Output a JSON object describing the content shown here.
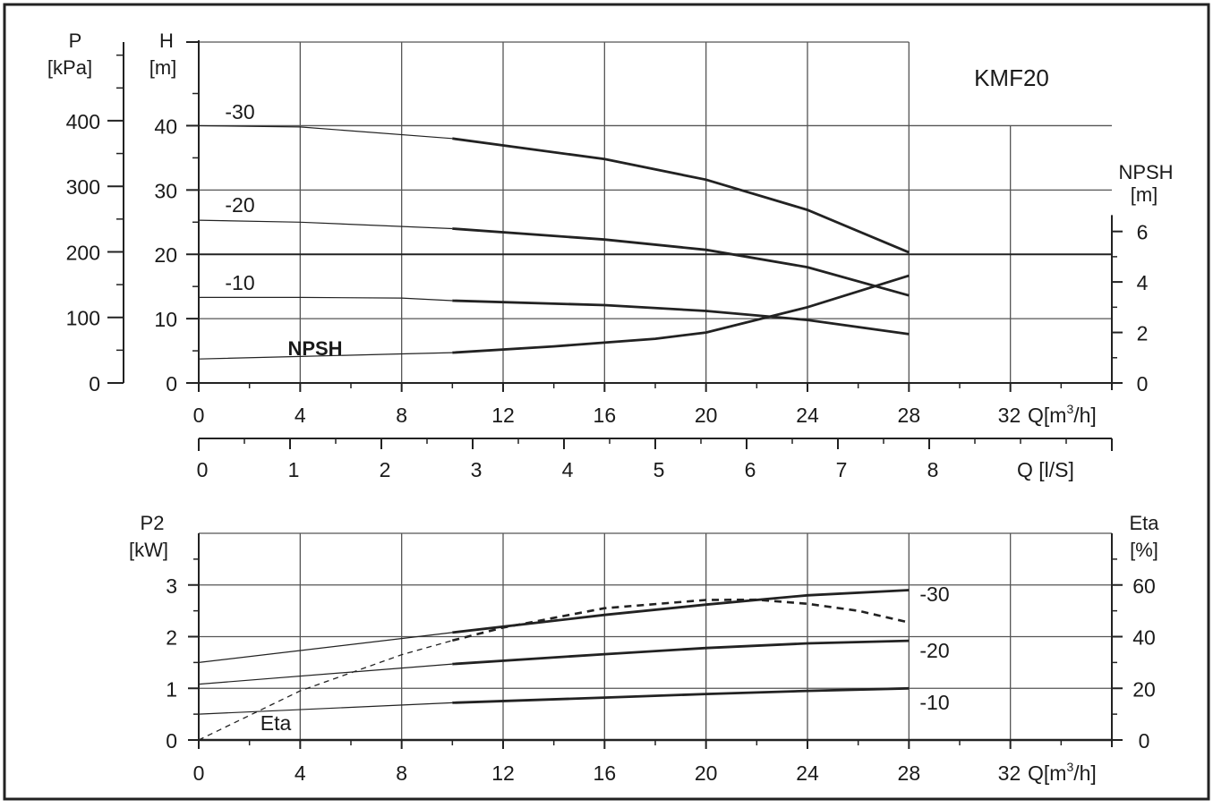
{
  "chart_data": [
    {
      "type": "line",
      "model": "KMF20",
      "x": {
        "unit": "Q[m³/h]",
        "range": [
          0,
          36
        ],
        "ticks": [
          0,
          4,
          8,
          12,
          16,
          20,
          24,
          28,
          32
        ]
      },
      "x_secondary": {
        "unit": "Q [l/S]",
        "range": [
          0,
          10
        ],
        "ticks": [
          0,
          1,
          2,
          3,
          4,
          5,
          6,
          7,
          8
        ]
      },
      "y_left_pressure": {
        "label_line1": "P",
        "label_line2": "[kPa]",
        "range": [
          0,
          520
        ],
        "ticks": [
          0,
          100,
          200,
          300,
          400
        ]
      },
      "y_left_head": {
        "label_line1": "H",
        "label_line2": "[m]",
        "range": [
          0,
          53
        ],
        "ticks": [
          0,
          10,
          20,
          30,
          40
        ]
      },
      "y_right_npsh": {
        "label_line1": "NPSH",
        "label_line2": "[m]",
        "range": [
          0,
          13.5
        ],
        "ticks": [
          0,
          2,
          4,
          6
        ]
      },
      "grid": true,
      "series": [
        {
          "name": "-30",
          "x": [
            0,
            4,
            10,
            16,
            20,
            24,
            28
          ],
          "y": [
            40,
            39.8,
            38,
            34.8,
            31.6,
            26.9,
            20.3
          ]
        },
        {
          "name": "-20",
          "x": [
            0,
            4,
            10,
            16,
            20,
            24,
            28
          ],
          "y": [
            25.3,
            25.0,
            24.0,
            22.3,
            20.7,
            18.0,
            13.6
          ]
        },
        {
          "name": "-10",
          "x": [
            0,
            4,
            8,
            10,
            16,
            20,
            24,
            28
          ],
          "y": [
            13.3,
            13.3,
            13.2,
            12.8,
            12.1,
            11.2,
            9.8,
            7.6
          ]
        },
        {
          "name": "NPSH",
          "x": [
            0,
            4,
            8,
            10,
            14,
            18,
            20,
            24,
            28
          ],
          "y_npsh": [
            0.95,
            1.05,
            1.15,
            1.2,
            1.45,
            1.75,
            2.0,
            3.0,
            4.25
          ]
        }
      ]
    },
    {
      "type": "line",
      "x": {
        "unit": "Q[m³/h]",
        "range": [
          0,
          36
        ],
        "ticks": [
          0,
          4,
          8,
          12,
          16,
          20,
          24,
          28,
          32
        ]
      },
      "y_left_power": {
        "label_line1": "P2",
        "label_line2": "[kW]",
        "range": [
          0,
          4
        ],
        "ticks": [
          0,
          1,
          2,
          3
        ]
      },
      "y_right_eta": {
        "label_line1": "Eta",
        "label_line2": "[%]",
        "range": [
          0,
          80
        ],
        "ticks": [
          0,
          20,
          40,
          60
        ]
      },
      "grid": true,
      "series": [
        {
          "name": "-30",
          "x": [
            0,
            10,
            16,
            20,
            24,
            28
          ],
          "y": [
            1.5,
            2.08,
            2.42,
            2.62,
            2.8,
            2.9
          ]
        },
        {
          "name": "-20",
          "x": [
            0,
            10,
            16,
            20,
            24,
            28
          ],
          "y": [
            1.08,
            1.47,
            1.66,
            1.78,
            1.87,
            1.92
          ]
        },
        {
          "name": "-10",
          "x": [
            0,
            10,
            16,
            20,
            24,
            28
          ],
          "y": [
            0.5,
            0.72,
            0.82,
            0.89,
            0.95,
            1.0
          ]
        },
        {
          "name": "Eta",
          "x": [
            0,
            4,
            8,
            10,
            12,
            16,
            20,
            22,
            24,
            26,
            28
          ],
          "y_eta": [
            0,
            19,
            33,
            38.5,
            43.5,
            51,
            54.2,
            54.3,
            52.7,
            50,
            45.5
          ]
        }
      ]
    }
  ]
}
